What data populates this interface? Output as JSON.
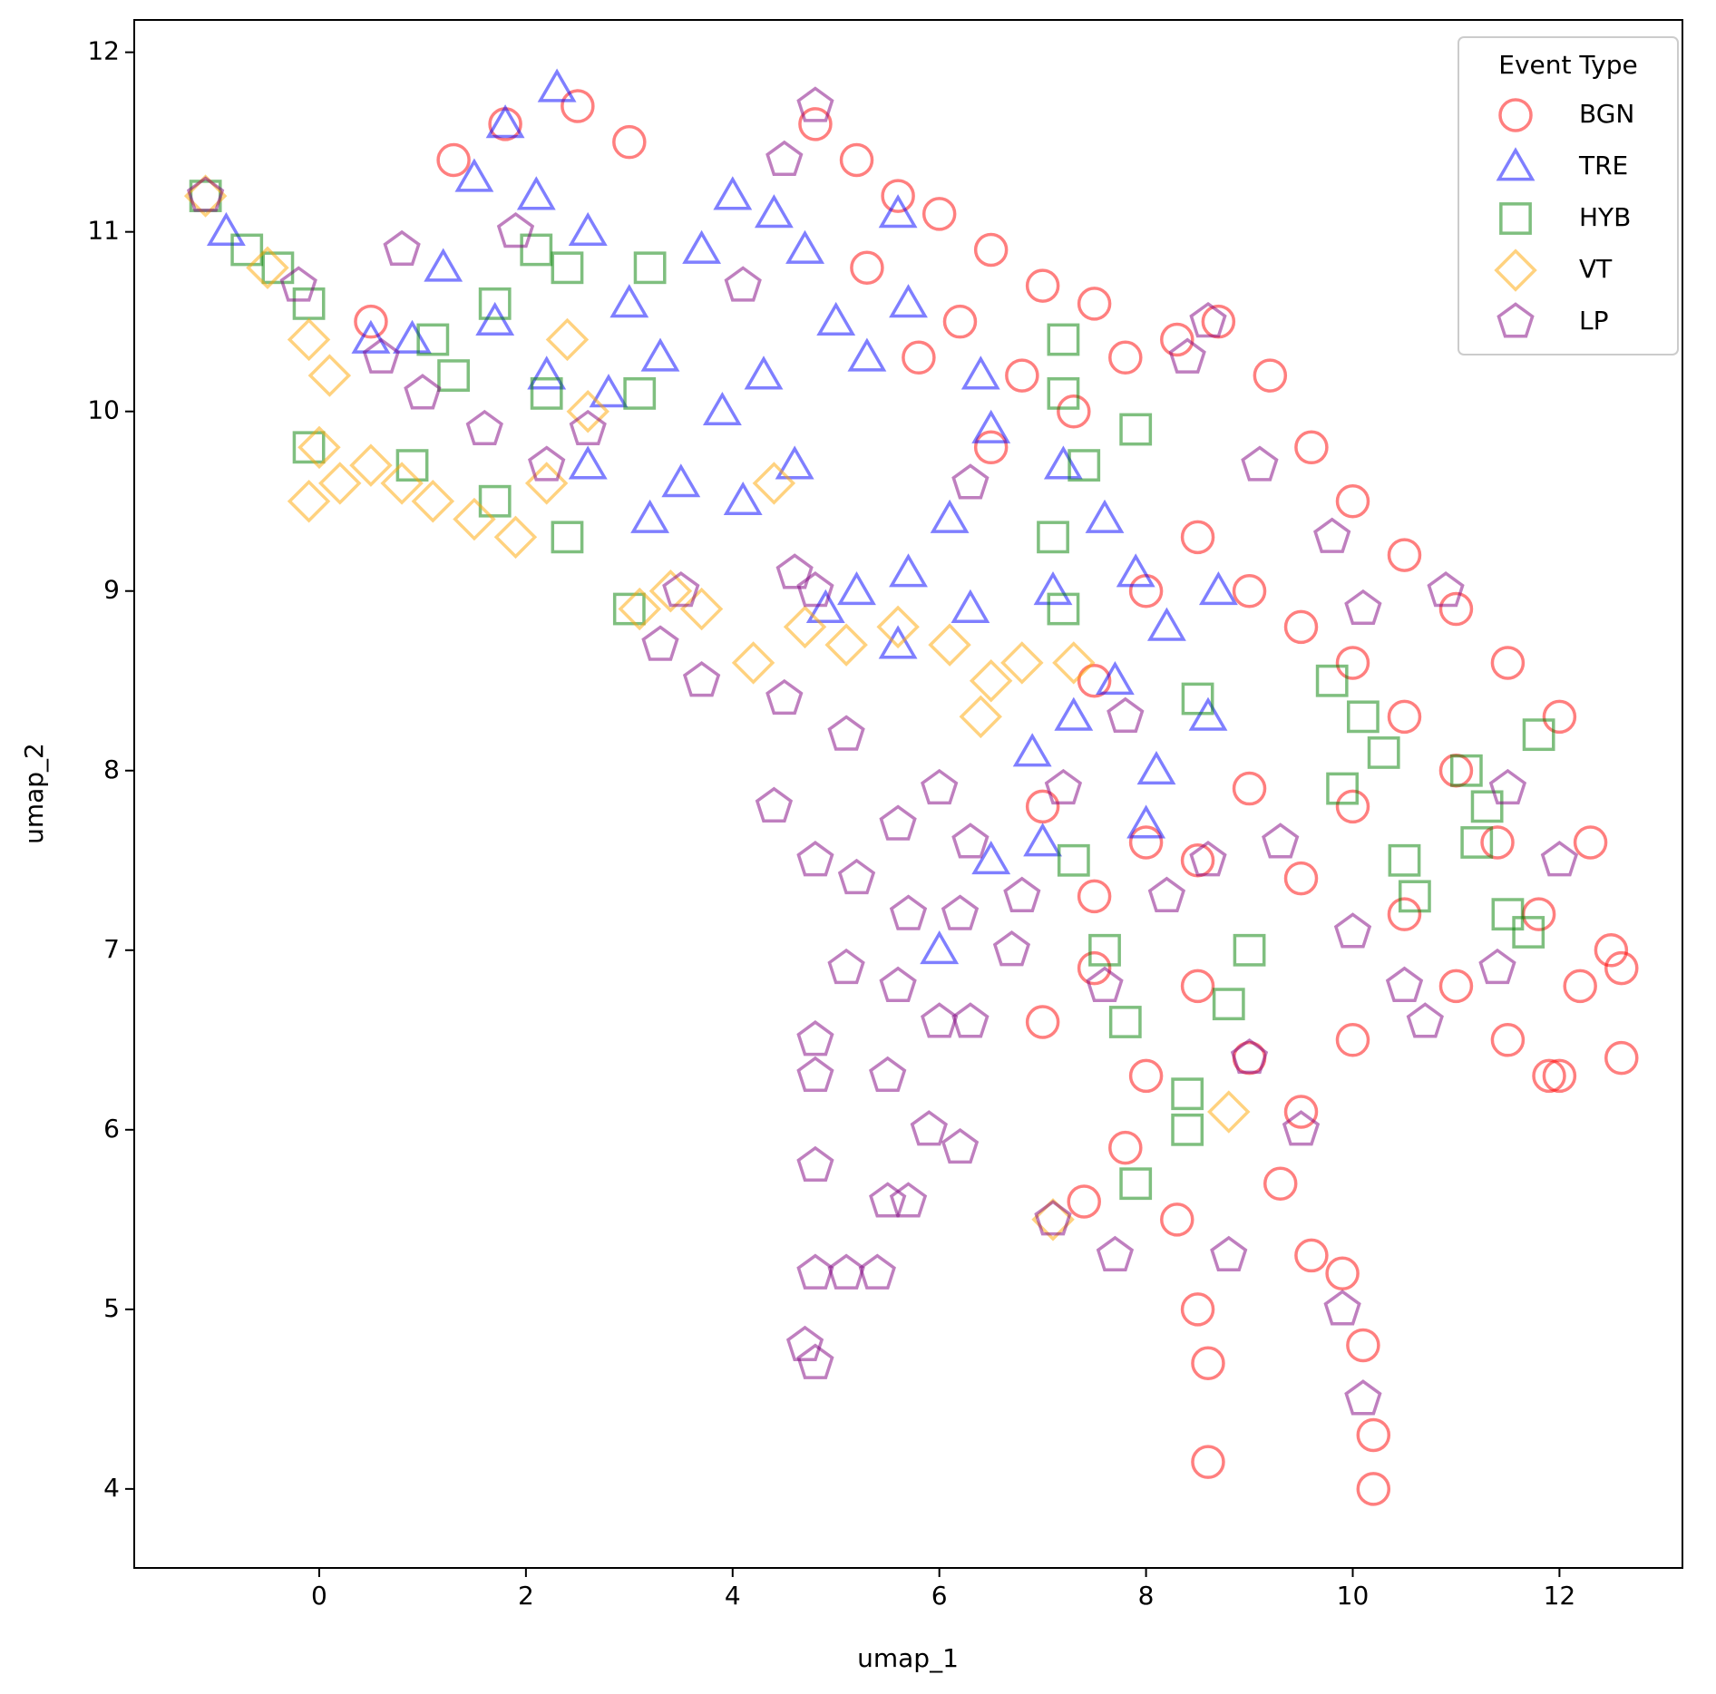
{
  "chart_data": {
    "type": "scatter",
    "xlabel": "umap_1",
    "ylabel": "umap_2",
    "xlim": [
      -1.79,
      13.19
    ],
    "ylim": [
      3.56,
      12.18
    ],
    "xticks": [
      0,
      2,
      4,
      6,
      8,
      10,
      12
    ],
    "yticks": [
      4,
      5,
      6,
      7,
      8,
      9,
      10,
      11,
      12
    ],
    "legend_title": "Event Type",
    "legend": "upper right",
    "alpha": 0.5,
    "series": [
      {
        "name": "BGN",
        "color": "red",
        "marker": "o",
        "values": [
          [
            4.8,
            11.6
          ],
          [
            5.2,
            11.4
          ],
          [
            5.6,
            11.2
          ],
          [
            6,
            11.1
          ],
          [
            6.5,
            10.9
          ],
          [
            7,
            10.7
          ],
          [
            7.5,
            10.6
          ],
          [
            6.2,
            10.5
          ],
          [
            6.8,
            10.2
          ],
          [
            7.3,
            10.0
          ],
          [
            6.5,
            9.8
          ],
          [
            7.8,
            10.3
          ],
          [
            8.3,
            10.4
          ],
          [
            8.7,
            10.5
          ],
          [
            9.2,
            10.2
          ],
          [
            9.6,
            9.8
          ],
          [
            10,
            9.5
          ],
          [
            10.5,
            9.2
          ],
          [
            11,
            8.9
          ],
          [
            11.5,
            8.6
          ],
          [
            12,
            8.3
          ],
          [
            12.3,
            7.6
          ],
          [
            12.5,
            7
          ],
          [
            12.6,
            6.4
          ],
          [
            12.2,
            6.8
          ],
          [
            11.8,
            7.2
          ],
          [
            11.4,
            7.6
          ],
          [
            11,
            8
          ],
          [
            10.5,
            8.3
          ],
          [
            10,
            8.6
          ],
          [
            9.5,
            8.8
          ],
          [
            9,
            9
          ],
          [
            8.5,
            9.3
          ],
          [
            8,
            9
          ],
          [
            7.5,
            8.5
          ],
          [
            7,
            7.8
          ],
          [
            7.5,
            7.3
          ],
          [
            8,
            7.6
          ],
          [
            8.5,
            7.5
          ],
          [
            9,
            7.9
          ],
          [
            9.5,
            7.4
          ],
          [
            10,
            7.8
          ],
          [
            10.5,
            7.2
          ],
          [
            11,
            6.8
          ],
          [
            11.5,
            6.5
          ],
          [
            12,
            6.3
          ],
          [
            7,
            6.6
          ],
          [
            7.5,
            6.9
          ],
          [
            8,
            6.3
          ],
          [
            8.5,
            6.8
          ],
          [
            9,
            6.4
          ],
          [
            9.5,
            6.1
          ],
          [
            10,
            6.5
          ],
          [
            7.4,
            5.6
          ],
          [
            7.8,
            5.9
          ],
          [
            8.3,
            5.5
          ],
          [
            9.3,
            5.7
          ],
          [
            9.6,
            5.3
          ],
          [
            8.5,
            5
          ],
          [
            8.6,
            4.7
          ],
          [
            8.6,
            4.15
          ],
          [
            9.9,
            5.2
          ],
          [
            10.1,
            4.8
          ],
          [
            10.2,
            4.3
          ],
          [
            10.2,
            4.0
          ],
          [
            11.9,
            6.3
          ],
          [
            12.6,
            6.9
          ],
          [
            5.3,
            10.8
          ],
          [
            5.8,
            10.3
          ],
          [
            3.0,
            11.5
          ],
          [
            2.5,
            11.7
          ],
          [
            1.8,
            11.6
          ],
          [
            1.3,
            11.4
          ],
          [
            0.5,
            10.5
          ]
        ]
      },
      {
        "name": "TRE",
        "color": "blue",
        "marker": "^",
        "values": [
          [
            -0.9,
            11
          ],
          [
            0.5,
            10.4
          ],
          [
            0.9,
            10.4
          ],
          [
            1.2,
            10.8
          ],
          [
            1.5,
            11.3
          ],
          [
            1.8,
            11.6
          ],
          [
            2.3,
            11.8
          ],
          [
            2.1,
            11.2
          ],
          [
            2.6,
            11.0
          ],
          [
            3,
            10.6
          ],
          [
            1.7,
            10.5
          ],
          [
            2.2,
            10.2
          ],
          [
            2.8,
            10.1
          ],
          [
            3.3,
            10.3
          ],
          [
            3.7,
            10.9
          ],
          [
            4,
            11.2
          ],
          [
            4.4,
            11.1
          ],
          [
            4.7,
            10.9
          ],
          [
            3.9,
            10.0
          ],
          [
            4.3,
            10.2
          ],
          [
            3.5,
            9.6
          ],
          [
            4.1,
            9.5
          ],
          [
            4.6,
            9.7
          ],
          [
            2.6,
            9.7
          ],
          [
            3.2,
            9.4
          ],
          [
            5,
            10.5
          ],
          [
            5.6,
            11.1
          ],
          [
            5.7,
            10.6
          ],
          [
            5.3,
            10.3
          ],
          [
            6.4,
            10.2
          ],
          [
            6.5,
            9.9
          ],
          [
            6.1,
            9.4
          ],
          [
            5.7,
            9.1
          ],
          [
            6.3,
            8.9
          ],
          [
            5.2,
            9.0
          ],
          [
            5.6,
            8.7
          ],
          [
            7.2,
            9.7
          ],
          [
            7.6,
            9.4
          ],
          [
            7.1,
            9.0
          ],
          [
            7.9,
            9.1
          ],
          [
            8.2,
            8.8
          ],
          [
            8.7,
            9.0
          ],
          [
            7.7,
            8.5
          ],
          [
            7.3,
            8.3
          ],
          [
            8.1,
            8.0
          ],
          [
            8.0,
            7.7
          ],
          [
            8.6,
            8.3
          ],
          [
            6.9,
            8.1
          ],
          [
            7.0,
            7.6
          ],
          [
            6.5,
            7.5
          ],
          [
            6.0,
            7.0
          ],
          [
            4.9,
            8.9
          ]
        ]
      },
      {
        "name": "HYB",
        "color": "green",
        "marker": "s",
        "values": [
          [
            -1.1,
            11.2
          ],
          [
            -0.7,
            10.9
          ],
          [
            -0.4,
            10.8
          ],
          [
            -0.1,
            10.6
          ],
          [
            1.1,
            10.4
          ],
          [
            1.3,
            10.2
          ],
          [
            1.7,
            10.6
          ],
          [
            2.1,
            10.9
          ],
          [
            2.4,
            10.8
          ],
          [
            3.2,
            10.8
          ],
          [
            2.2,
            10.1
          ],
          [
            3.1,
            10.1
          ],
          [
            -0.1,
            9.8
          ],
          [
            0.9,
            9.7
          ],
          [
            1.7,
            9.5
          ],
          [
            2.4,
            9.3
          ],
          [
            3.0,
            8.9
          ],
          [
            7.2,
            10.4
          ],
          [
            7.2,
            10.1
          ],
          [
            7.9,
            9.9
          ],
          [
            7.4,
            9.7
          ],
          [
            7.1,
            9.3
          ],
          [
            7.2,
            8.9
          ],
          [
            8.5,
            8.4
          ],
          [
            9.8,
            8.5
          ],
          [
            10.1,
            8.3
          ],
          [
            10.3,
            8.1
          ],
          [
            9.9,
            7.9
          ],
          [
            11.1,
            8.0
          ],
          [
            11.3,
            7.8
          ],
          [
            11.8,
            8.2
          ],
          [
            11.2,
            7.6
          ],
          [
            10.5,
            7.5
          ],
          [
            10.6,
            7.3
          ],
          [
            11.5,
            7.2
          ],
          [
            11.7,
            7.1
          ],
          [
            7.3,
            7.5
          ],
          [
            7.6,
            7.0
          ],
          [
            7.8,
            6.6
          ],
          [
            8.8,
            6.7
          ],
          [
            9,
            7.0
          ],
          [
            8.4,
            6.2
          ],
          [
            8.4,
            6.0
          ],
          [
            7.9,
            5.7
          ]
        ]
      },
      {
        "name": "VT",
        "color": "orange",
        "marker": "D",
        "values": [
          [
            -1.1,
            11.2
          ],
          [
            -0.5,
            10.8
          ],
          [
            -0.1,
            10.4
          ],
          [
            0.1,
            10.2
          ],
          [
            0,
            9.8
          ],
          [
            -0.1,
            9.5
          ],
          [
            0.2,
            9.6
          ],
          [
            0.5,
            9.7
          ],
          [
            0.8,
            9.6
          ],
          [
            1.1,
            9.5
          ],
          [
            1.5,
            9.4
          ],
          [
            1.9,
            9.3
          ],
          [
            2.4,
            10.4
          ],
          [
            2.6,
            10.0
          ],
          [
            3.4,
            9.0
          ],
          [
            3.7,
            8.9
          ],
          [
            3.1,
            8.9
          ],
          [
            4.2,
            8.6
          ],
          [
            4.7,
            8.8
          ],
          [
            5.1,
            8.7
          ],
          [
            5.6,
            8.8
          ],
          [
            6.1,
            8.7
          ],
          [
            6.5,
            8.5
          ],
          [
            6.8,
            8.6
          ],
          [
            7.3,
            8.6
          ],
          [
            6.4,
            8.3
          ],
          [
            7.1,
            5.5
          ],
          [
            8.8,
            6.1
          ],
          [
            2.2,
            9.6
          ],
          [
            4.4,
            9.6
          ]
        ]
      },
      {
        "name": "LP",
        "color": "purple",
        "marker": "p",
        "values": [
          [
            -1.1,
            11.2
          ],
          [
            -0.2,
            10.7
          ],
          [
            0.6,
            10.3
          ],
          [
            1.0,
            10.1
          ],
          [
            1.6,
            9.9
          ],
          [
            2.2,
            9.7
          ],
          [
            2.6,
            9.9
          ],
          [
            1.9,
            11.0
          ],
          [
            0.8,
            10.9
          ],
          [
            3.5,
            9.0
          ],
          [
            3.3,
            8.7
          ],
          [
            3.7,
            8.5
          ],
          [
            4.8,
            11.7
          ],
          [
            4.5,
            11.4
          ],
          [
            4.1,
            10.7
          ],
          [
            4.6,
            9.1
          ],
          [
            4.8,
            9.0
          ],
          [
            4.5,
            8.4
          ],
          [
            5.1,
            8.2
          ],
          [
            4.4,
            7.8
          ],
          [
            4.8,
            7.5
          ],
          [
            5.2,
            7.4
          ],
          [
            5.6,
            7.7
          ],
          [
            6.0,
            7.9
          ],
          [
            6.3,
            7.6
          ],
          [
            5.7,
            7.2
          ],
          [
            6.2,
            7.2
          ],
          [
            6.8,
            7.3
          ],
          [
            6.7,
            7.0
          ],
          [
            5.1,
            6.9
          ],
          [
            5.6,
            6.8
          ],
          [
            6.0,
            6.6
          ],
          [
            6.3,
            6.6
          ],
          [
            4.8,
            6.5
          ],
          [
            5.5,
            6.3
          ],
          [
            4.8,
            6.3
          ],
          [
            5.9,
            6.0
          ],
          [
            6.2,
            5.9
          ],
          [
            4.8,
            5.8
          ],
          [
            5.5,
            5.6
          ],
          [
            5.7,
            5.6
          ],
          [
            5.1,
            5.2
          ],
          [
            5.4,
            5.2
          ],
          [
            4.8,
            5.2
          ],
          [
            4.7,
            4.8
          ],
          [
            4.8,
            4.7
          ],
          [
            6.3,
            9.6
          ],
          [
            7.2,
            7.9
          ],
          [
            7.8,
            8.3
          ],
          [
            8.6,
            10.5
          ],
          [
            8.4,
            10.3
          ],
          [
            9.1,
            9.7
          ],
          [
            9.8,
            9.3
          ],
          [
            10.1,
            8.9
          ],
          [
            8.6,
            7.5
          ],
          [
            8.2,
            7.3
          ],
          [
            9.3,
            7.6
          ],
          [
            10,
            7.1
          ],
          [
            10.5,
            6.8
          ],
          [
            10.7,
            6.6
          ],
          [
            11.5,
            7.9
          ],
          [
            12.0,
            7.5
          ],
          [
            9.0,
            6.4
          ],
          [
            9.5,
            6.0
          ],
          [
            9.9,
            5.0
          ],
          [
            10.1,
            4.5
          ],
          [
            8.8,
            5.3
          ],
          [
            7.7,
            5.3
          ],
          [
            7.1,
            5.5
          ],
          [
            7.6,
            6.8
          ],
          [
            11.4,
            6.9
          ],
          [
            10.9,
            9.0
          ]
        ]
      }
    ]
  }
}
